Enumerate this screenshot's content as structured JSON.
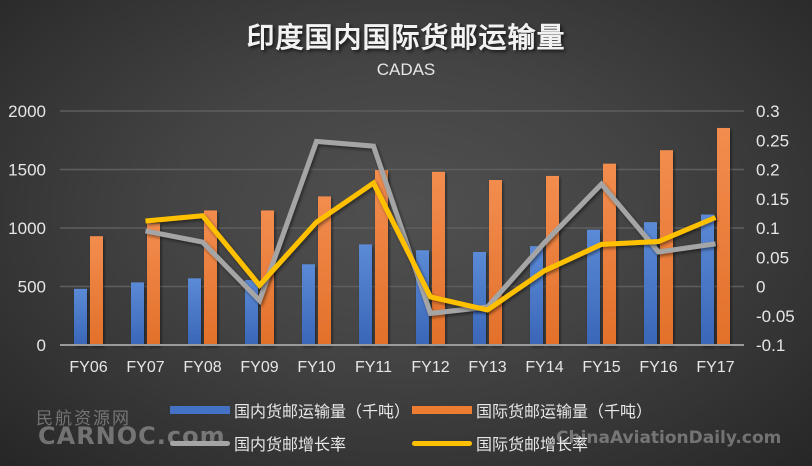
{
  "title": "印度国内国际货邮运输量",
  "subtitle": "CADAS",
  "colors": {
    "domestic_bar": "#4472C4",
    "international_bar": "#ED7D31",
    "domestic_growth": "#A5A5A5",
    "international_growth": "#FFC000",
    "gridline": "#5e5e5e",
    "axis_text": "#e6e6e6"
  },
  "legend": {
    "domestic_volume": "国内货邮运输量（千吨）",
    "international_volume": "国际货邮运输量（千吨）",
    "domestic_growth": "国内货邮增长率",
    "international_growth": "国际货邮增长率"
  },
  "watermarks": {
    "left_cn": "民航资源网",
    "left_en": "CARNOC.com",
    "right_en": "ChinaAviationDaily.com"
  },
  "chart_data": {
    "type": "bar",
    "title": "印度国内国际货邮运输量",
    "subtitle": "CADAS",
    "xlabel": "",
    "ylabel": "",
    "categories": [
      "FY06",
      "FY07",
      "FY08",
      "FY09",
      "FY10",
      "FY11",
      "FY12",
      "FY13",
      "FY14",
      "FY15",
      "FY16",
      "FY17"
    ],
    "series": [
      {
        "name": "国内货邮运输量（千吨）",
        "type": "bar",
        "axis": "left",
        "values": [
          480,
          535,
          570,
          555,
          690,
          860,
          810,
          795,
          845,
          985,
          1050,
          1115
        ]
      },
      {
        "name": "国际货邮运输量（千吨）",
        "type": "bar",
        "axis": "left",
        "values": [
          930,
          1040,
          1150,
          1150,
          1270,
          1495,
          1480,
          1410,
          1445,
          1550,
          1665,
          1855
        ]
      },
      {
        "name": "国内货邮增长率",
        "type": "line",
        "axis": "right",
        "values": [
          null,
          0.095,
          0.076,
          -0.024,
          0.248,
          0.24,
          -0.046,
          -0.035,
          0.075,
          0.175,
          0.059,
          0.073
        ]
      },
      {
        "name": "国际货邮增长率",
        "type": "line",
        "axis": "right",
        "values": [
          null,
          0.112,
          0.121,
          0.002,
          0.11,
          0.177,
          -0.018,
          -0.04,
          0.027,
          0.072,
          0.077,
          0.118
        ]
      }
    ],
    "ylim": [
      0,
      2000
    ],
    "yticks": [
      "0",
      "500",
      "1000",
      "1500",
      "2000"
    ],
    "y2lim": [
      -0.1,
      0.3
    ],
    "y2ticks": [
      "-0.1",
      "-0.05",
      "0",
      "0.05",
      "0.1",
      "0.15",
      "0.2",
      "0.25",
      "0.3"
    ],
    "grid": true,
    "legend_position": "bottom"
  }
}
